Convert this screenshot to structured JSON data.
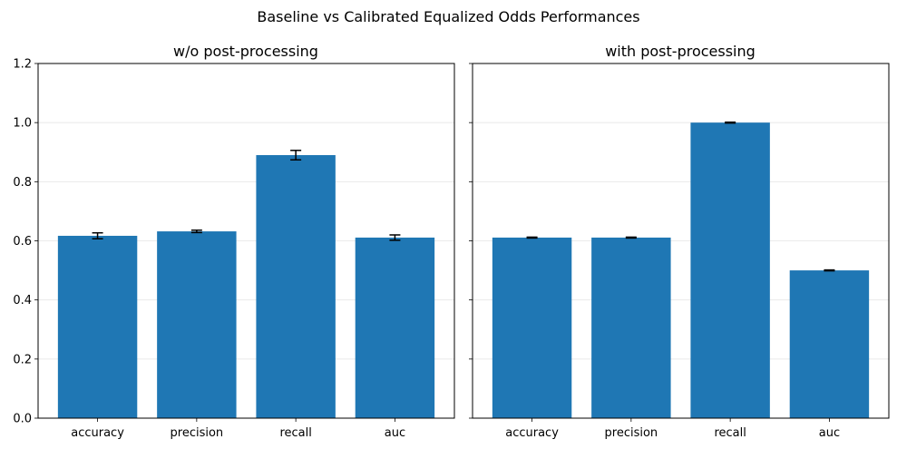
{
  "figure": {
    "title": "Baseline vs Calibrated Equalized Odds Performances"
  },
  "chart_data": [
    {
      "type": "bar",
      "title": "w/o post-processing",
      "categories": [
        "accuracy",
        "precision",
        "recall",
        "auc"
      ],
      "values": [
        0.617,
        0.632,
        0.89,
        0.611
      ],
      "errors": [
        0.01,
        0.004,
        0.016,
        0.009
      ],
      "ylim": [
        0,
        1.2
      ],
      "yticks": [
        "0.0",
        "0.2",
        "0.4",
        "0.6",
        "0.8",
        "1.0",
        "1.2"
      ],
      "xlabel": "",
      "ylabel": "",
      "grid": "y",
      "color": "#1f77b4"
    },
    {
      "type": "bar",
      "title": "with post-processing",
      "categories": [
        "accuracy",
        "precision",
        "recall",
        "auc"
      ],
      "values": [
        0.611,
        0.611,
        1.0,
        0.5
      ],
      "errors": [
        0.0015,
        0.0015,
        0.0015,
        0.0015
      ],
      "ylim": [
        0,
        1.2
      ],
      "yticks": [],
      "xlabel": "",
      "ylabel": "",
      "grid": "y",
      "color": "#1f77b4"
    }
  ]
}
